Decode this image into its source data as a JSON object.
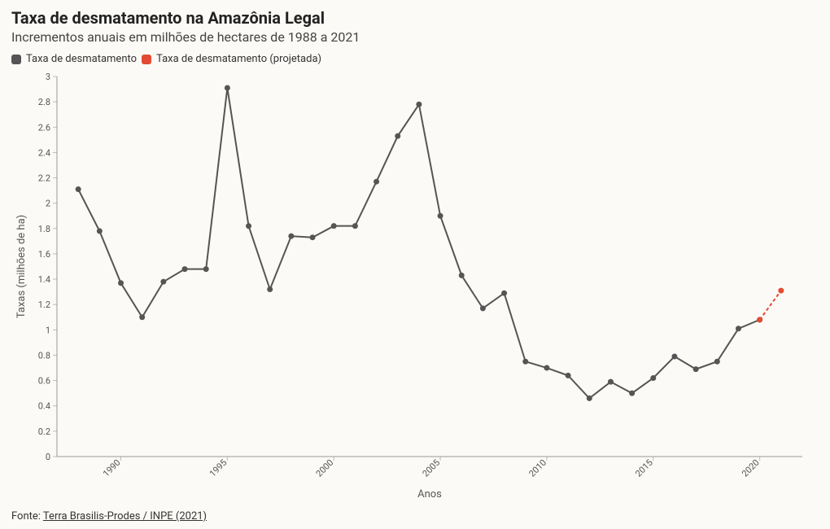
{
  "title": "Taxa de desmatamento na Amazônia Legal",
  "subtitle": "Incrementos anuais em milhões de hectares de 1988 a 2021",
  "legend": {
    "actual": "Taxa de desmatamento",
    "projected": "Taxa de desmatamento (projetada)"
  },
  "xlabel": "Anos",
  "ylabel": "Taxas (milhões de ha)",
  "source_prefix": "Fonte: ",
  "source_text": "Terra Brasilis-Prodes / INPE (2021)",
  "chart": {
    "type": "line",
    "background_color": "#fcfaf6",
    "series_actual_color": "#555555",
    "series_projected_color": "#e34a33",
    "marker_radius": 3.5,
    "line_width": 2,
    "projected_dash": "4 3",
    "xlim": [
      1987,
      2022
    ],
    "ylim": [
      0,
      3
    ],
    "yticks": [
      0,
      0.2,
      0.4,
      0.6,
      0.8,
      1,
      1.2,
      1.4,
      1.6,
      1.8,
      2,
      2.2,
      2.4,
      2.6,
      2.8,
      3
    ],
    "xticks": [
      1990,
      1995,
      2000,
      2005,
      2010,
      2015,
      2020
    ],
    "grid_color": "#bbbbbb",
    "axis_color": "#999999",
    "tick_font_size": 11,
    "label_font_size": 13,
    "actual": {
      "years": [
        1988,
        1989,
        1990,
        1991,
        1992,
        1993,
        1994,
        1995,
        1996,
        1997,
        1998,
        1999,
        2000,
        2001,
        2002,
        2003,
        2004,
        2005,
        2006,
        2007,
        2008,
        2009,
        2010,
        2011,
        2012,
        2013,
        2014,
        2015,
        2016,
        2017,
        2018,
        2019,
        2020
      ],
      "values": [
        2.11,
        1.78,
        1.37,
        1.1,
        1.38,
        1.48,
        1.48,
        2.91,
        1.82,
        1.32,
        1.74,
        1.73,
        1.82,
        1.82,
        2.17,
        2.53,
        2.78,
        1.9,
        1.43,
        1.17,
        1.29,
        0.75,
        0.7,
        0.64,
        0.46,
        0.59,
        0.5,
        0.62,
        0.79,
        0.69,
        0.75,
        1.01,
        1.08
      ]
    },
    "projected": {
      "years": [
        2020,
        2021
      ],
      "values": [
        1.08,
        1.31
      ]
    }
  }
}
